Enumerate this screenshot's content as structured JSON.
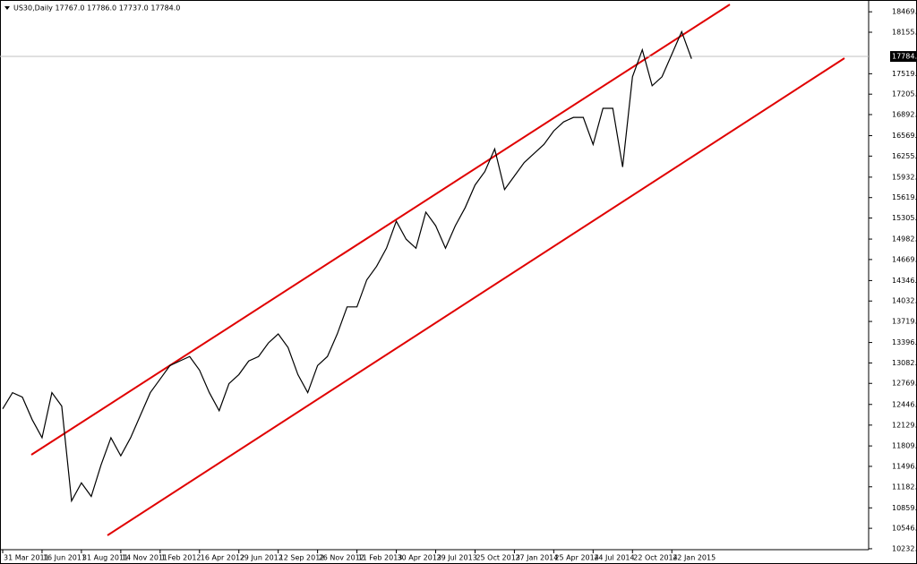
{
  "chart_data": {
    "type": "line",
    "title": "US30,Daily  17767.0 17786.0 17737.0 17784.0",
    "categories": [
      "31 Mar 2011",
      null,
      null,
      null,
      "16 Jun 2011",
      null,
      null,
      null,
      "31 Aug 2011",
      null,
      null,
      null,
      "14 Nov 2011",
      null,
      null,
      null,
      "1 Feb 2012",
      null,
      null,
      null,
      "16 Apr 2012",
      null,
      null,
      null,
      "29 Jun 2012",
      null,
      null,
      null,
      "12 Sep 2012",
      null,
      null,
      null,
      "26 Nov 2012",
      null,
      null,
      null,
      "11 Feb 2013",
      null,
      null,
      null,
      "30 Apr 2013",
      null,
      null,
      null,
      "29 Jul 2013",
      null,
      null,
      null,
      "25 Oct 2013",
      null,
      null,
      null,
      "27 Jan 2014",
      null,
      null,
      null,
      "25 Apr 2014",
      null,
      null,
      null,
      "24 Jul 2014",
      null,
      null,
      null,
      "22 Oct 2014",
      null,
      null,
      null,
      "22 Jan 2015",
      null,
      null,
      null,
      null,
      null,
      null,
      null,
      null,
      null,
      null,
      null,
      null,
      null,
      null,
      null,
      null,
      null,
      null,
      null
    ],
    "series": [
      {
        "name": "US30",
        "color": "#000000",
        "values": [
          12378,
          12627,
          12558,
          12212,
          11935,
          12627,
          12420,
          10966,
          11243,
          11035,
          11520,
          11935,
          11658,
          11935,
          12281,
          12627,
          12835,
          13043,
          13112,
          13181,
          12973,
          12627,
          12350,
          12766,
          12904,
          13112,
          13181,
          13389,
          13527,
          13320,
          12904,
          12627,
          13043,
          13181,
          13527,
          13942,
          13942,
          14357,
          14565,
          14842,
          15257,
          14980,
          14842,
          15396,
          15188,
          14842,
          15188,
          15465,
          15811,
          16019,
          16365,
          15742,
          15950,
          16157,
          16296,
          16434,
          16642,
          16780,
          16849,
          16849,
          16434,
          16988,
          16988,
          16088,
          17472,
          17887,
          17334,
          17472,
          17818,
          18164,
          17749,
          null,
          null,
          null,
          null,
          null,
          null,
          null,
          null,
          null,
          null,
          null,
          null,
          null,
          null,
          null,
          null,
          null
        ]
      }
    ],
    "ylim": [
      10218,
      18650
    ],
    "yticks": [
      10232.5,
      {
        "value": 10546,
        "label": "10546.0"
      },
      10859.5,
      11182.5,
      {
        "value": 11496,
        "label": "11496.0"
      },
      11809.5,
      {
        "value": 12129,
        "label": "12129.0"
      },
      {
        "value": 12446,
        "label": "12446.0"
      },
      {
        "value": 12769,
        "label": "12769.0"
      },
      13082.5,
      {
        "value": 13396,
        "label": "13396.0"
      },
      {
        "value": 13719,
        "label": "13719.0"
      },
      14032.5,
      {
        "value": 14346,
        "label": "14346.0"
      },
      {
        "value": 14669,
        "label": "14669.0"
      },
      14982.5,
      15305.5,
      {
        "value": 15619,
        "label": "15619.0"
      },
      15932.5,
      16255.5,
      {
        "value": 16569,
        "label": "16569.0"
      },
      16892.5,
      17205.5,
      {
        "value": 17519,
        "label": "17519.0"
      },
      18155.5,
      {
        "value": 18469,
        "label": "18469.0"
      }
    ],
    "current_price": {
      "value": 17784,
      "label": "17784.0"
    },
    "grid": false
  }
}
